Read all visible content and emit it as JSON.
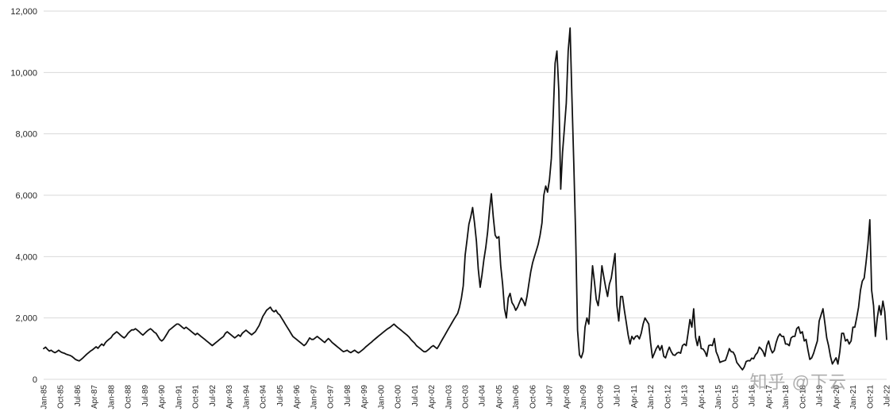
{
  "page": {
    "background": "#ffffff"
  },
  "watermark": {
    "text": "知乎 @下云",
    "color": "#9a9a9a"
  },
  "chart_data": {
    "type": "line",
    "title": "",
    "xlabel": "",
    "ylabel": "",
    "x_start": "Jan-85",
    "x_end": "Jul-22",
    "frequency": "monthly",
    "x_tick_every_n_points": 9,
    "x_tick_labels": [
      "Jan-85",
      "Oct-85",
      "Jul-86",
      "Apr-87",
      "Jan-88",
      "Oct-88",
      "Jul-89",
      "Apr-90",
      "Jan-91",
      "Oct-91",
      "Jul-92",
      "Apr-93",
      "Jan-94",
      "Oct-94",
      "Jul-95",
      "Apr-96",
      "Jan-97",
      "Oct-97",
      "Jul-98",
      "Apr-99",
      "Jan-00",
      "Oct-00",
      "Jul-01",
      "Apr-02",
      "Jan-03",
      "Oct-03",
      "Jul-04",
      "Apr-05",
      "Jan-06",
      "Oct-06",
      "Jul-07",
      "Apr-08",
      "Jan-09",
      "Oct-09",
      "Jul-10",
      "Apr-11",
      "Jan-12",
      "Oct-12",
      "Jul-13",
      "Apr-14",
      "Jan-15",
      "Oct-15",
      "Jul-16",
      "Apr-17",
      "Jan-18",
      "Oct-18",
      "Jul-19",
      "Apr-20",
      "Jan-21",
      "Oct-21",
      "Jul-22"
    ],
    "ylim": [
      0,
      12000
    ],
    "y_ticks": [
      {
        "value": 0,
        "label": "0"
      },
      {
        "value": 2000,
        "label": "2,000"
      },
      {
        "value": 4000,
        "label": "4,000"
      },
      {
        "value": 6000,
        "label": "6,000"
      },
      {
        "value": 8000,
        "label": "8,000"
      },
      {
        "value": 10000,
        "label": "10,000"
      },
      {
        "value": 12000,
        "label": "12,000"
      }
    ],
    "grid": "horizontal",
    "legend": "none",
    "line_color": "#111111",
    "grid_color": "#d9d9d9",
    "axis_text_color": "#262626",
    "series": [
      {
        "name": "value",
        "values": [
          1000,
          1050,
          980,
          920,
          950,
          900,
          870,
          900,
          950,
          900,
          870,
          850,
          820,
          800,
          780,
          750,
          700,
          650,
          620,
          600,
          650,
          700,
          760,
          820,
          870,
          920,
          960,
          1010,
          1060,
          1010,
          1090,
          1150,
          1100,
          1200,
          1260,
          1310,
          1360,
          1450,
          1500,
          1550,
          1500,
          1440,
          1390,
          1350,
          1410,
          1500,
          1560,
          1610,
          1610,
          1650,
          1600,
          1550,
          1490,
          1440,
          1500,
          1560,
          1610,
          1650,
          1600,
          1540,
          1500,
          1400,
          1300,
          1250,
          1300,
          1400,
          1500,
          1600,
          1650,
          1700,
          1750,
          1800,
          1800,
          1750,
          1700,
          1650,
          1700,
          1650,
          1600,
          1550,
          1500,
          1450,
          1500,
          1450,
          1400,
          1350,
          1300,
          1250,
          1200,
          1150,
          1100,
          1150,
          1200,
          1250,
          1300,
          1350,
          1400,
          1500,
          1550,
          1500,
          1450,
          1400,
          1350,
          1400,
          1450,
          1400,
          1500,
          1550,
          1600,
          1550,
          1500,
          1450,
          1500,
          1550,
          1650,
          1750,
          1900,
          2050,
          2150,
          2250,
          2300,
          2350,
          2250,
          2200,
          2250,
          2150,
          2100,
          2000,
          1900,
          1800,
          1700,
          1600,
          1500,
          1400,
          1350,
          1300,
          1250,
          1200,
          1150,
          1100,
          1150,
          1250,
          1350,
          1300,
          1300,
          1350,
          1400,
          1350,
          1300,
          1250,
          1200,
          1270,
          1330,
          1270,
          1200,
          1150,
          1100,
          1050,
          1000,
          950,
          900,
          920,
          950,
          900,
          870,
          910,
          950,
          900,
          860,
          900,
          950,
          1000,
          1060,
          1110,
          1160,
          1210,
          1270,
          1320,
          1370,
          1420,
          1470,
          1520,
          1570,
          1620,
          1660,
          1700,
          1750,
          1800,
          1740,
          1690,
          1640,
          1590,
          1540,
          1490,
          1440,
          1380,
          1300,
          1240,
          1180,
          1100,
          1050,
          1000,
          950,
          900,
          900,
          950,
          1000,
          1060,
          1100,
          1050,
          1000,
          1100,
          1210,
          1320,
          1420,
          1530,
          1640,
          1740,
          1850,
          1950,
          2050,
          2150,
          2350,
          2650,
          3050,
          4050,
          4550,
          5050,
          5300,
          5600,
          5100,
          4500,
          3600,
          3000,
          3400,
          3900,
          4300,
          4800,
          5500,
          6050,
          5300,
          4700,
          4600,
          4650,
          3700,
          3100,
          2300,
          2000,
          2650,
          2800,
          2500,
          2400,
          2250,
          2350,
          2500,
          2650,
          2550,
          2400,
          2700,
          3100,
          3500,
          3800,
          4000,
          4200,
          4400,
          4700,
          5100,
          6000,
          6300,
          6100,
          6500,
          7200,
          8600,
          10300,
          10700,
          9400,
          6200,
          7400,
          8200,
          9000,
          10700,
          11450,
          9200,
          7000,
          4700,
          1600,
          800,
          700,
          900,
          1700,
          2000,
          1800,
          2700,
          3700,
          3200,
          2600,
          2400,
          2900,
          3700,
          3350,
          3000,
          2700,
          3100,
          3300,
          3700,
          4100,
          2400,
          1900,
          2700,
          2700,
          2250,
          1850,
          1450,
          1150,
          1400,
          1300,
          1400,
          1420,
          1320,
          1500,
          1800,
          2000,
          1900,
          1800,
          1200,
          700,
          850,
          1000,
          1100,
          950,
          1100,
          750,
          700,
          900,
          1050,
          900,
          800,
          780,
          850,
          880,
          850,
          1100,
          1150,
          1100,
          1500,
          1950,
          1700,
          2300,
          1370,
          1100,
          1400,
          1000,
          990,
          900,
          750,
          1100,
          1120,
          1100,
          1330,
          900,
          750,
          550,
          580,
          600,
          620,
          800,
          1000,
          900,
          890,
          780,
          550,
          470,
          390,
          310,
          400,
          580,
          610,
          600,
          690,
          670,
          800,
          870,
          1050,
          990,
          910,
          750,
          1100,
          1250,
          1000,
          860,
          940,
          1200,
          1380,
          1480,
          1400,
          1400,
          1150,
          1150,
          1100,
          1350,
          1400,
          1400,
          1650,
          1710,
          1500,
          1550,
          1250,
          1300,
          950,
          650,
          700,
          850,
          1050,
          1250,
          1900,
          2100,
          2300,
          1850,
          1350,
          1100,
          750,
          500,
          600,
          700,
          500,
          900,
          1500,
          1500,
          1250,
          1300,
          1150,
          1250,
          1700,
          1700,
          2000,
          2350,
          2900,
          3200,
          3300,
          3800,
          4400,
          5200,
          2900,
          2400,
          1400,
          2000,
          2400,
          2100,
          2550,
          2200,
          1300
        ]
      }
    ]
  }
}
